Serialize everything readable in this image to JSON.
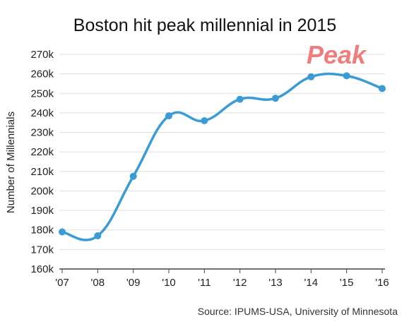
{
  "chart_data": {
    "type": "line",
    "title": "Boston hit peak millennial in 2015",
    "ylabel": "Number of Millennials",
    "xlabel": "",
    "categories": [
      "'07",
      "'08",
      "'09",
      "'10",
      "'11",
      "'12",
      "'13",
      "'14",
      "'15",
      "'16"
    ],
    "series": [
      {
        "values": [
          179000,
          177000,
          207500,
          238500,
          236000,
          247000,
          247500,
          258500,
          259000,
          252500
        ]
      }
    ],
    "ylim": [
      160000,
      270000
    ],
    "yticks": [
      160000,
      170000,
      180000,
      190000,
      200000,
      210000,
      220000,
      230000,
      240000,
      250000,
      260000,
      270000
    ],
    "ytick_labels": [
      "160k",
      "170k",
      "180k",
      "190k",
      "200k",
      "210k",
      "220k",
      "230k",
      "240k",
      "250k",
      "260k",
      "270k"
    ],
    "grid": true,
    "legend": "none",
    "annotation": "Peak",
    "source": "Source: IPUMS-USA, University of Minnesota",
    "colors": {
      "line": "#3a9bd5",
      "grid": "#dddddd",
      "axis": "#444444",
      "annotation": "#f07d7d"
    }
  }
}
